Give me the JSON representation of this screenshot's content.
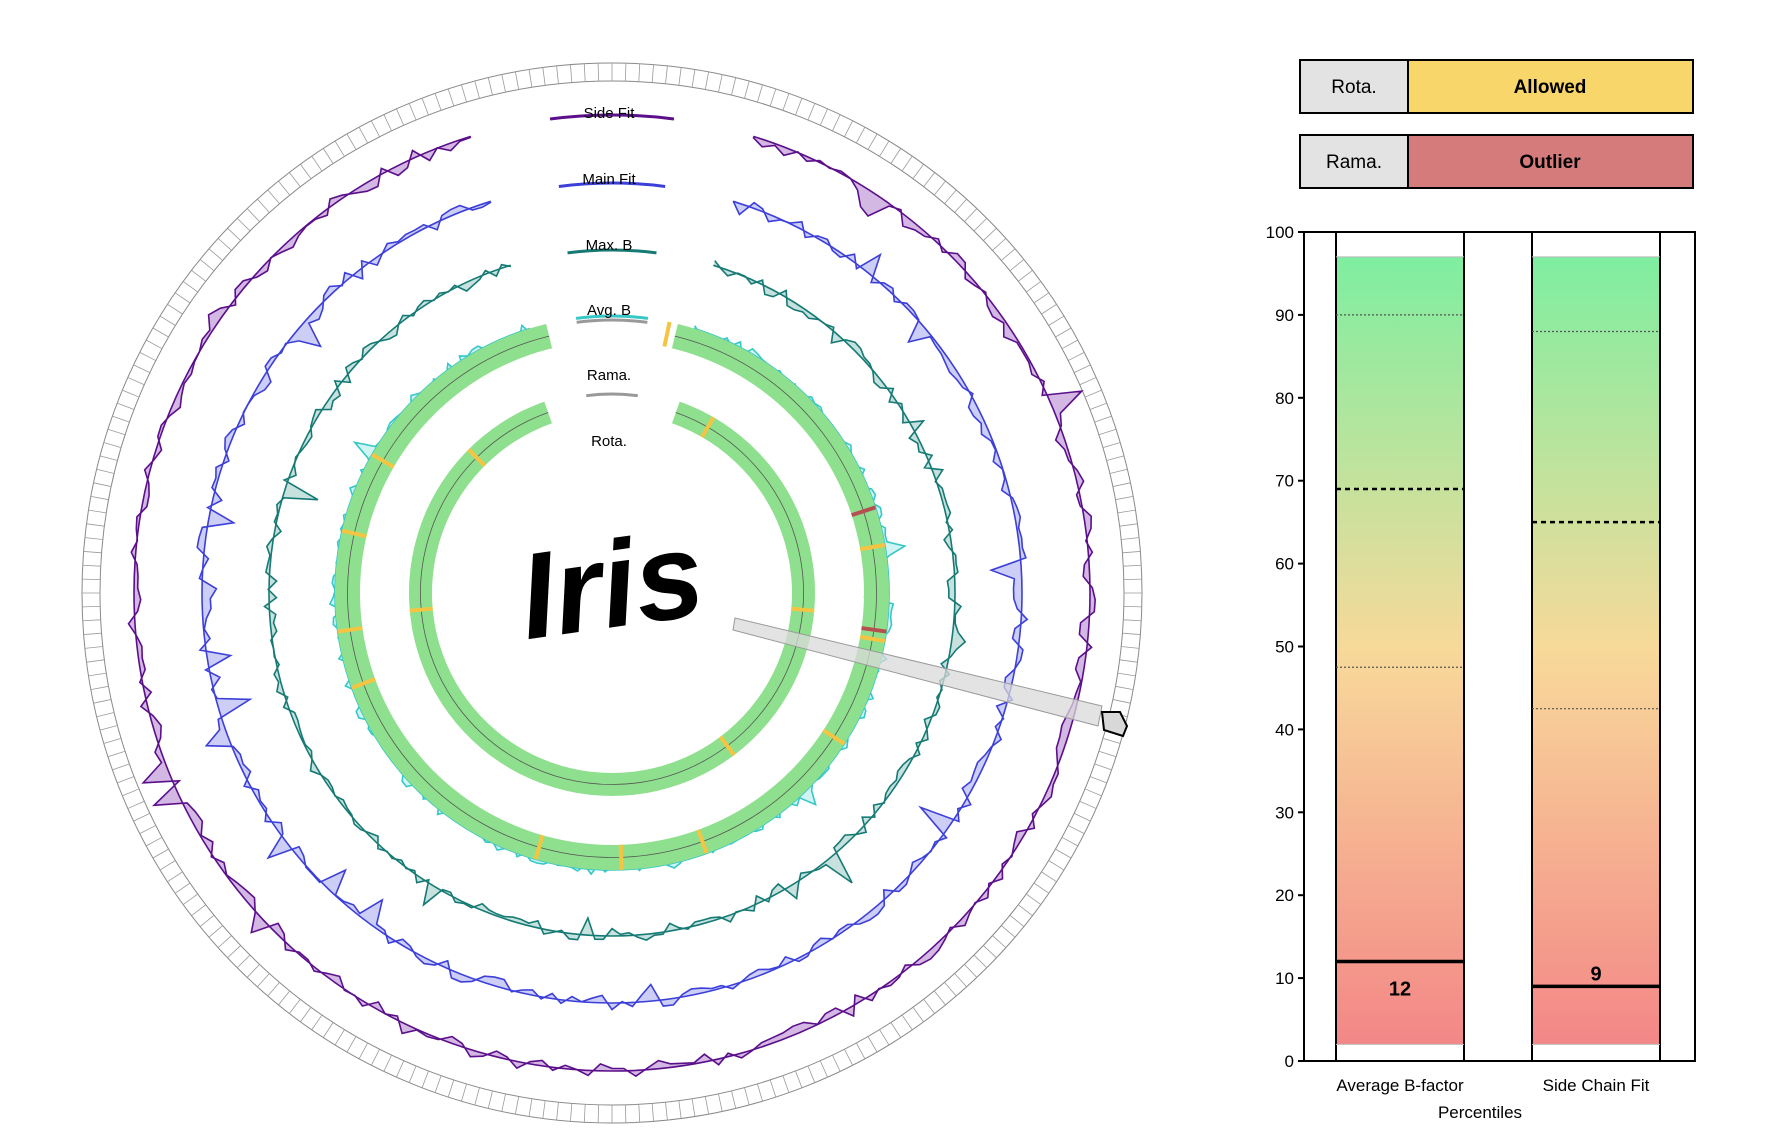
{
  "logo": {
    "text": "Iris"
  },
  "rings": [
    {
      "id": "side-fit",
      "label": "Side Fit",
      "color": "#5b0f8a",
      "fill": "#c9a6dd"
    },
    {
      "id": "main-fit",
      "label": "Main Fit",
      "color": "#3c3fd8",
      "fill": "#c0c2f4"
    },
    {
      "id": "max-b",
      "label": "Max. B",
      "color": "#167a74",
      "fill": "#b9d9d6"
    },
    {
      "id": "avg-b",
      "label": "Avg. B",
      "color": "#38c7c7",
      "fill": "#c4f0f0"
    },
    {
      "id": "rama",
      "label": "Rama.",
      "color": "#8ee08e"
    },
    {
      "id": "rota",
      "label": "Rota.",
      "color": "#8ee08e"
    }
  ],
  "legend": {
    "rota": {
      "key": "Rota.",
      "value": "Allowed",
      "color": "#f8d66a"
    },
    "rama": {
      "key": "Rama.",
      "value": "Outlier",
      "color": "#d67b7b"
    }
  },
  "chart_data": {
    "type": "bar",
    "xlabel": "Percentiles",
    "ylim": [
      0,
      100
    ],
    "yticks": [
      0,
      10,
      20,
      30,
      40,
      50,
      60,
      70,
      80,
      90,
      100
    ],
    "categories": [
      "Average B-factor",
      "Side Chain Fit"
    ],
    "values": [
      12,
      9
    ],
    "value_labels": [
      "12",
      "9"
    ],
    "gradient_range": [
      2,
      97
    ],
    "reference_lines": [
      {
        "category": "Average B-factor",
        "dotted": [
          90,
          47.5
        ],
        "dashed": 69
      },
      {
        "category": "Side Chain Fit",
        "dotted": [
          88,
          42.5
        ],
        "dashed": 65
      }
    ]
  }
}
